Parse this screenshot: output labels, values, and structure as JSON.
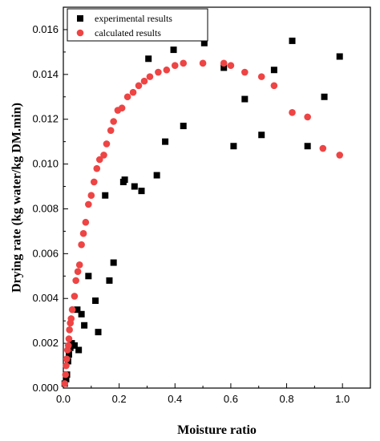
{
  "chart_data": {
    "type": "scatter",
    "xlabel": "Moisture ratio",
    "ylabel": "Drying rate (kg water/kg DM.min)",
    "xlim": [
      0.0,
      1.1
    ],
    "ylim": [
      0.0,
      0.017
    ],
    "x_ticks": [
      "0.0",
      "0.2",
      "0.4",
      "0.6",
      "0.8",
      "1.0"
    ],
    "y_ticks": [
      "0.000",
      "0.002",
      "0.004",
      "0.006",
      "0.008",
      "0.010",
      "0.012",
      "0.014",
      "0.016"
    ],
    "grid": false,
    "legend": "top-left",
    "series": [
      {
        "name": "experimental results",
        "marker": "square",
        "color": "#000000",
        "x": [
          0.005,
          0.01,
          0.013,
          0.017,
          0.02,
          0.025,
          0.03,
          0.04,
          0.05,
          0.055,
          0.065,
          0.075,
          0.09,
          0.115,
          0.125,
          0.15,
          0.165,
          0.18,
          0.215,
          0.22,
          0.255,
          0.28,
          0.305,
          0.335,
          0.365,
          0.395,
          0.43,
          0.505,
          0.575,
          0.61,
          0.65,
          0.71,
          0.755,
          0.82,
          0.875,
          0.935,
          0.99
        ],
        "y": [
          0.0002,
          0.0004,
          0.0006,
          0.0012,
          0.0015,
          0.0018,
          0.002,
          0.0019,
          0.0035,
          0.0017,
          0.0033,
          0.0028,
          0.005,
          0.0039,
          0.0025,
          0.0086,
          0.0048,
          0.0056,
          0.0092,
          0.0093,
          0.009,
          0.0088,
          0.0147,
          0.0095,
          0.011,
          0.0151,
          0.0117,
          0.0154,
          0.0143,
          0.0108,
          0.0129,
          0.0113,
          0.0142,
          0.0155,
          0.0108,
          0.013,
          0.0148
        ]
      },
      {
        "name": "calculated results",
        "marker": "circle",
        "color": "#ee4444",
        "x": [
          0.005,
          0.008,
          0.01,
          0.012,
          0.015,
          0.018,
          0.02,
          0.022,
          0.025,
          0.028,
          0.032,
          0.04,
          0.045,
          0.052,
          0.058,
          0.065,
          0.072,
          0.08,
          0.09,
          0.1,
          0.11,
          0.12,
          0.13,
          0.145,
          0.155,
          0.17,
          0.18,
          0.195,
          0.21,
          0.23,
          0.25,
          0.27,
          0.29,
          0.31,
          0.34,
          0.37,
          0.4,
          0.43,
          0.5,
          0.575,
          0.6,
          0.65,
          0.71,
          0.755,
          0.82,
          0.875,
          0.93,
          0.99
        ],
        "y": [
          0.0002,
          0.0006,
          0.001,
          0.0013,
          0.0017,
          0.0019,
          0.0022,
          0.0026,
          0.0029,
          0.0031,
          0.0035,
          0.0041,
          0.0048,
          0.0052,
          0.0055,
          0.0064,
          0.0069,
          0.0074,
          0.0082,
          0.0086,
          0.0092,
          0.0098,
          0.0102,
          0.0104,
          0.0109,
          0.0115,
          0.0119,
          0.0124,
          0.0125,
          0.013,
          0.0132,
          0.0135,
          0.0137,
          0.0139,
          0.0141,
          0.0142,
          0.0144,
          0.0145,
          0.0145,
          0.0145,
          0.0144,
          0.0141,
          0.0139,
          0.0135,
          0.0123,
          0.0121,
          0.0107,
          0.0104
        ]
      }
    ]
  }
}
